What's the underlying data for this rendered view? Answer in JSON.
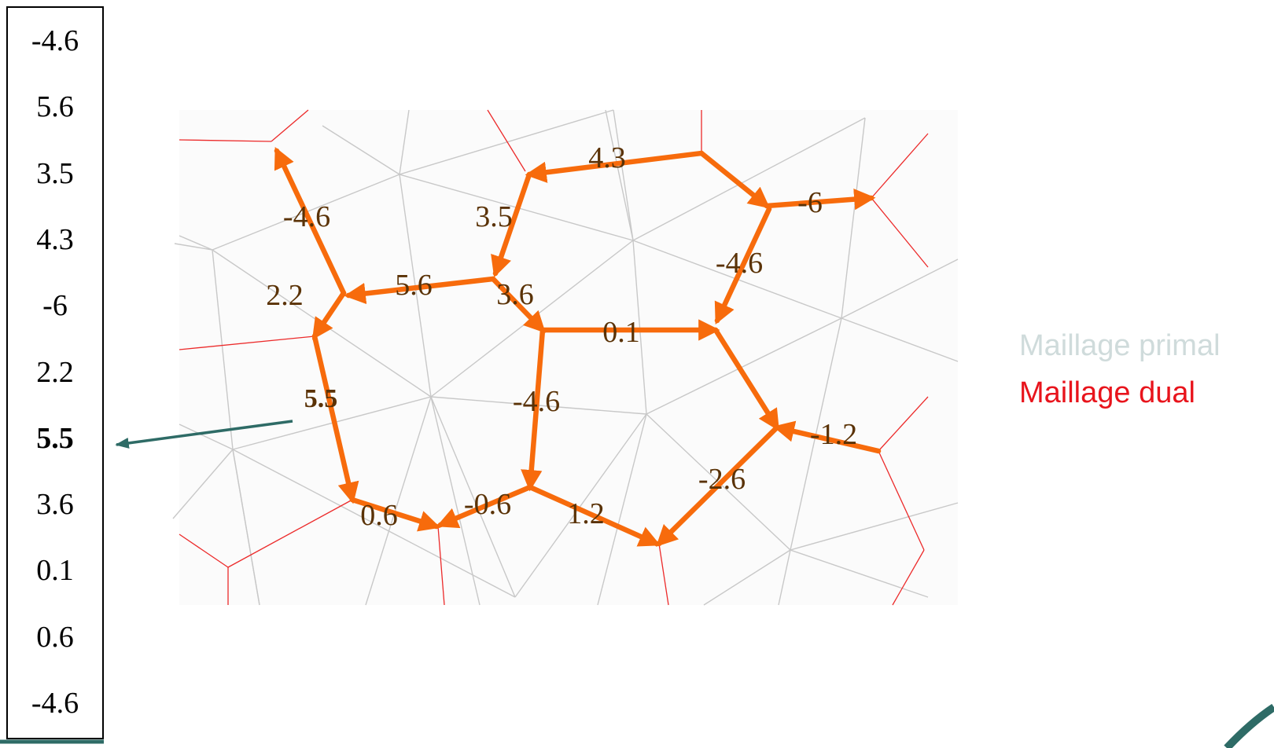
{
  "value_list": {
    "values": [
      "-4.6",
      "5.6",
      "3.5",
      "4.3",
      "-6",
      "2.2",
      "5.5",
      "3.6",
      "0.1",
      "0.6",
      "-4.6"
    ],
    "highlighted_value": "5.5"
  },
  "legend": {
    "primal": {
      "label": "Maillage primal",
      "color": "#cfdbdb"
    },
    "dual": {
      "label": "Maillage dual",
      "color": "#e8141c"
    }
  },
  "colors": {
    "flow_arrow": "#f76b0c",
    "edge_label": "#5a3206",
    "pointer_arrow": "#2e6b66",
    "primal_edge": "#c8c8c8",
    "dual_edge": "#ec2a2a"
  },
  "edge_labels": [
    {
      "id": "edge-label-a",
      "text": "-4.6",
      "bold": false
    },
    {
      "id": "edge-label-b",
      "text": "3.5",
      "bold": false
    },
    {
      "id": "edge-label-c",
      "text": "4.3",
      "bold": false
    },
    {
      "id": "edge-label-d",
      "text": "-6",
      "bold": false
    },
    {
      "id": "edge-label-e",
      "text": "-4.6",
      "bold": false
    },
    {
      "id": "edge-label-f",
      "text": "2.2",
      "bold": false
    },
    {
      "id": "edge-label-g",
      "text": "5.6",
      "bold": false
    },
    {
      "id": "edge-label-h",
      "text": "3.6",
      "bold": false
    },
    {
      "id": "edge-label-i",
      "text": "0.1",
      "bold": false
    },
    {
      "id": "edge-label-j",
      "text": "5.5",
      "bold": true
    },
    {
      "id": "edge-label-k",
      "text": "-4.6",
      "bold": false
    },
    {
      "id": "edge-label-l",
      "text": "-1.2",
      "bold": false
    },
    {
      "id": "edge-label-m",
      "text": "-2.6",
      "bold": false
    },
    {
      "id": "edge-label-n",
      "text": "0.6",
      "bold": false
    },
    {
      "id": "edge-label-o",
      "text": "-0.6",
      "bold": false
    },
    {
      "id": "edge-label-p",
      "text": "1.2",
      "bold": false
    }
  ]
}
